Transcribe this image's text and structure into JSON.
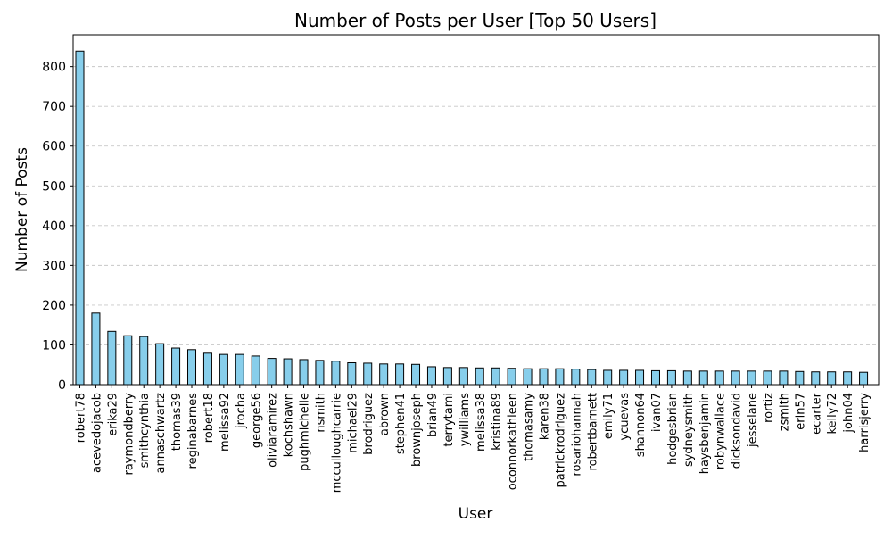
{
  "chart_data": {
    "type": "bar",
    "title": "Number of Posts per User [Top 50 Users]",
    "xlabel": "User",
    "ylabel": "Number of Posts",
    "ylim": [
      0,
      880
    ],
    "yticks": [
      0,
      100,
      200,
      300,
      400,
      500,
      600,
      700,
      800
    ],
    "grid": "y-dashed",
    "legend": "none",
    "bar_color": "#87ceeb",
    "edge_color": "#000000",
    "categories": [
      "robert78",
      "acevedojacob",
      "erika29",
      "raymondberry",
      "smithcynthia",
      "annaschwartz",
      "thomas39",
      "reginabarnes",
      "robert18",
      "melissa92",
      "jrocha",
      "george56",
      "oliviaramirez",
      "kochshawn",
      "pughmichelle",
      "nsmith",
      "mcculloughcarrie",
      "michael29",
      "brodriguez",
      "abrown",
      "stephen41",
      "brownjoseph",
      "brian49",
      "terrytami",
      "ywilliams",
      "melissa38",
      "kristina89",
      "oconnorkathleen",
      "thomasamy",
      "karen38",
      "patrickrodriguez",
      "rosariohannah",
      "robertbarnett",
      "emily71",
      "ycuevas",
      "shannon64",
      "ivan07",
      "hodgesbrian",
      "sydneysmith",
      "haysbenjamin",
      "robynwallace",
      "dicksondavid",
      "jesselane",
      "rortiz",
      "zsmith",
      "erin57",
      "ecarter",
      "kelly72",
      "john04",
      "harrisjerry"
    ],
    "values": [
      839,
      180,
      134,
      123,
      121,
      103,
      92,
      88,
      79,
      76,
      76,
      72,
      66,
      65,
      63,
      61,
      59,
      55,
      54,
      52,
      52,
      51,
      45,
      43,
      43,
      42,
      42,
      41,
      40,
      40,
      40,
      39,
      38,
      36,
      36,
      36,
      35,
      35,
      34,
      34,
      34,
      34,
      34,
      34,
      34,
      33,
      32,
      32,
      32,
      31
    ]
  }
}
